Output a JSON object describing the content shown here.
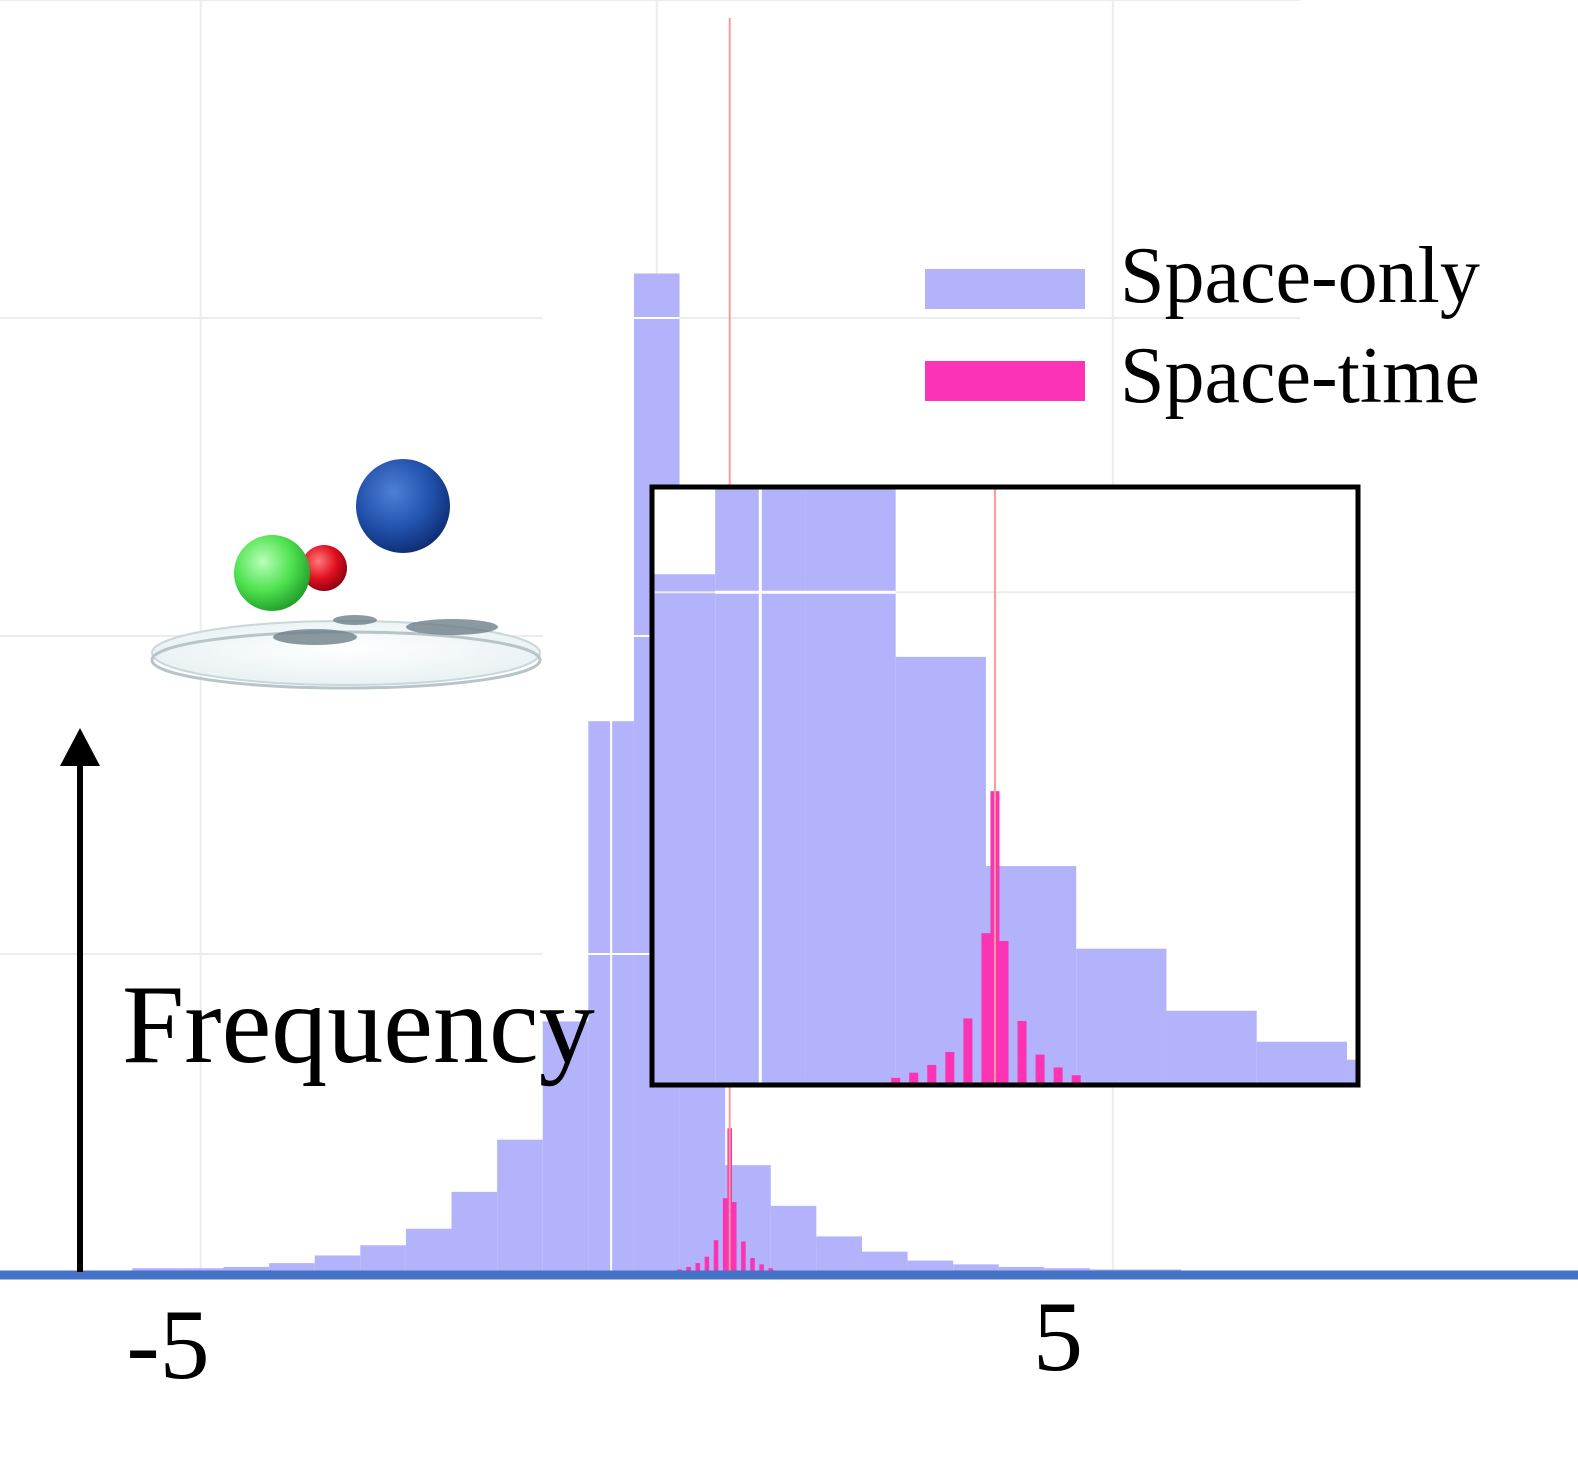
{
  "chart_data": {
    "type": "bar",
    "title": "",
    "xlabel": "",
    "ylabel": "Frequency",
    "x_tick_labels": [
      {
        "label": "-5",
        "value": -5
      },
      {
        "label": "5",
        "value": 5
      }
    ],
    "xlim": [
      -7.2,
      10.1
    ],
    "ylim": [
      0,
      1.0
    ],
    "grid": true,
    "legend": {
      "position": "top-right"
    },
    "colors": {
      "space_only": "#b3b3fb",
      "space_time": "#fb33b4",
      "axis": "#4472c4",
      "marker": "#ff9a9a"
    },
    "marker_x": 0.8,
    "series": [
      {
        "name": "Space-only",
        "bin_width": 0.5,
        "bins": [
          {
            "x": -5.5,
            "y": 0.003
          },
          {
            "x": -5.0,
            "y": 0.003
          },
          {
            "x": -4.5,
            "y": 0.004
          },
          {
            "x": -4.0,
            "y": 0.007
          },
          {
            "x": -3.5,
            "y": 0.013
          },
          {
            "x": -3.0,
            "y": 0.021
          },
          {
            "x": -2.5,
            "y": 0.034
          },
          {
            "x": -2.0,
            "y": 0.063
          },
          {
            "x": -1.5,
            "y": 0.104
          },
          {
            "x": -1.0,
            "y": 0.197
          },
          {
            "x": -0.5,
            "y": 0.433
          },
          {
            "x": 0.0,
            "y": 0.785
          },
          {
            "x": 0.5,
            "y": 0.165
          },
          {
            "x": 1.0,
            "y": 0.084
          },
          {
            "x": 1.5,
            "y": 0.052
          },
          {
            "x": 2.0,
            "y": 0.028
          },
          {
            "x": 2.5,
            "y": 0.016
          },
          {
            "x": 3.0,
            "y": 0.009
          },
          {
            "x": 3.5,
            "y": 0.006
          },
          {
            "x": 4.0,
            "y": 0.004
          },
          {
            "x": 4.5,
            "y": 0.003
          },
          {
            "x": 5.0,
            "y": 0.002
          },
          {
            "x": 5.5,
            "y": 0.002
          }
        ]
      },
      {
        "name": "Space-time",
        "bin_width": 0.05,
        "bins": [
          {
            "x": 0.25,
            "y": 0.002
          },
          {
            "x": 0.35,
            "y": 0.004
          },
          {
            "x": 0.45,
            "y": 0.007
          },
          {
            "x": 0.55,
            "y": 0.012
          },
          {
            "x": 0.65,
            "y": 0.025
          },
          {
            "x": 0.75,
            "y": 0.058
          },
          {
            "x": 0.8,
            "y": 0.113
          },
          {
            "x": 0.85,
            "y": 0.055
          },
          {
            "x": 0.95,
            "y": 0.024
          },
          {
            "x": 1.05,
            "y": 0.011
          },
          {
            "x": 1.15,
            "y": 0.006
          },
          {
            "x": 1.25,
            "y": 0.003
          }
        ]
      }
    ],
    "inset": {
      "note": "zoomed view of the central peak",
      "xlim": [
        -1.1,
        2.8
      ],
      "ylim": [
        0,
        0.23
      ]
    }
  },
  "labels": {
    "ylabel": "Frequency",
    "legend_space_only": "Space-only",
    "legend_space_time": "Space-time",
    "tick_neg5": "-5",
    "tick_5": "5"
  }
}
